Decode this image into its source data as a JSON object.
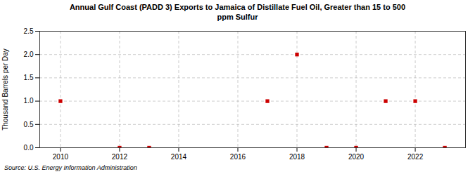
{
  "chart_data": {
    "type": "scatter",
    "title": "Annual Gulf Coast (PADD 3) Exports to Jamaica of Distillate Fuel Oil, Greater than 15 to 500\nppm Sulfur",
    "ylabel": "Thousand Barrels per Day",
    "source": "Source: U.S. Energy Information Administration",
    "x": [
      2010,
      2011,
      2012,
      2013,
      2014,
      2015,
      2016,
      2017,
      2018,
      2019,
      2020,
      2021,
      2022,
      2023
    ],
    "values": [
      1.0,
      null,
      0.0,
      0.0,
      null,
      null,
      null,
      1.0,
      2.0,
      0.0,
      0.0,
      1.0,
      1.0,
      0.0
    ],
    "color": "#cc0000",
    "marker": "square",
    "xlim": [
      2009.3,
      2023.7
    ],
    "xticks": [
      2010,
      2012,
      2014,
      2016,
      2018,
      2020,
      2022
    ],
    "ylim": [
      0.0,
      2.5
    ],
    "yticks": [
      {
        "value": 0.0,
        "label": "0.0"
      },
      {
        "value": 0.5,
        "label": "0.5"
      },
      {
        "value": 1.0,
        "label": "1.0"
      },
      {
        "value": 1.5,
        "label": "1.5"
      },
      {
        "value": 2.0,
        "label": "2.0"
      },
      {
        "value": 2.5,
        "label": "2.5"
      }
    ],
    "grid": true
  }
}
